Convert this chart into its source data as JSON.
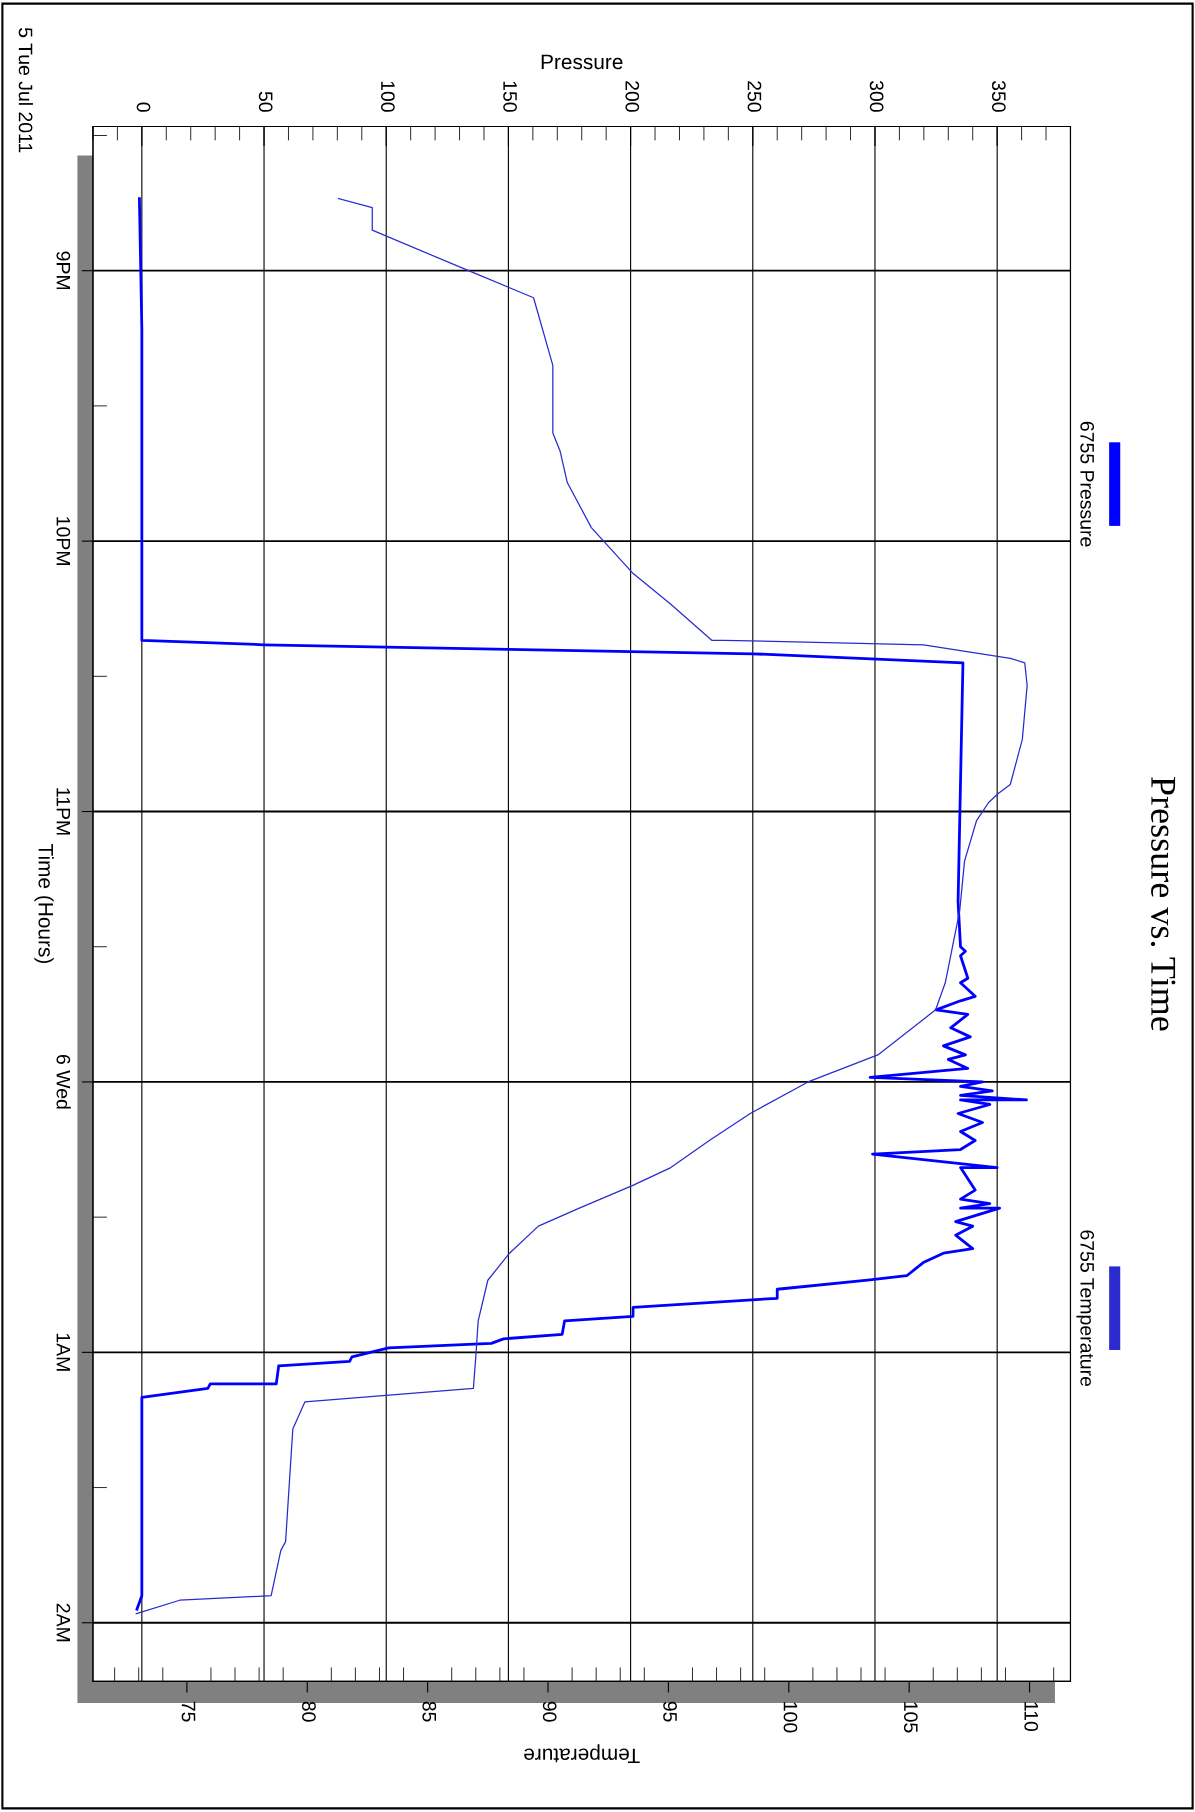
{
  "chart_data": {
    "type": "line",
    "orientation": "horizontal",
    "title": "Pressure vs. Time",
    "ylabel": "Time (Hours)",
    "x2label": "Pressure",
    "xlabel": "Temperature",
    "annotations": [
      "5 Tue Jul 2011"
    ],
    "ylim": [
      "2011-07-06T02:13",
      "2011-07-05T20:28"
    ],
    "yticks": [
      {
        "value": "2011-07-05T21:00",
        "label": "9PM"
      },
      {
        "value": "2011-07-05T22:00",
        "label": "10PM"
      },
      {
        "value": "2011-07-05T23:00",
        "label": "11PM"
      },
      {
        "value": "2011-07-06T00:00",
        "label": "6 Wed"
      },
      {
        "value": "2011-07-06T01:00",
        "label": "1AM"
      },
      {
        "value": "2011-07-06T02:00",
        "label": "2AM"
      }
    ],
    "x2lim": [
      -20,
      380
    ],
    "x2ticks": [
      0,
      50,
      100,
      150,
      200,
      250,
      300,
      350
    ],
    "xlim": [
      71.1,
      111.7
    ],
    "xticks": [
      75,
      80,
      85,
      90,
      95,
      100,
      105,
      110
    ],
    "grid": true,
    "legend": "right",
    "series": [
      {
        "name": "6755 Pressure",
        "color": "#0000ff",
        "line_style": "solid",
        "axis": "x2",
        "values": [
          -1,
          0,
          0,
          0,
          50,
          150,
          250,
          336,
          334,
          335,
          337,
          335,
          338,
          335,
          341,
          335,
          325,
          338,
          331,
          339,
          328,
          337,
          330,
          338,
          298,
          344,
          335,
          348,
          335,
          362,
          335,
          347,
          334,
          344,
          335,
          341,
          335,
          299,
          350,
          335,
          341,
          335,
          347,
          335,
          351,
          333,
          340,
          333,
          340,
          328,
          320,
          313,
          297,
          260,
          260,
          201,
          201,
          173,
          172,
          148,
          143,
          101,
          86,
          85,
          56,
          55,
          28,
          27,
          0,
          0,
          -2
        ],
        "x": [
          "2011-07-05T20:44",
          "2011-07-05T21:13",
          "2011-07-05T22:00",
          "2011-07-05T22:22",
          "2011-07-05T22:23",
          "2011-07-05T22:24",
          "2011-07-05T22:25",
          "2011-07-05T22:27",
          "2011-07-05T23:20",
          "2011-07-05T23:30",
          "2011-07-05T23:31",
          "2011-07-05T23:32",
          "2011-07-05T23:37",
          "2011-07-05T23:38",
          "2011-07-05T23:41",
          "2011-07-05T23:42",
          "2011-07-05T23:44",
          "2011-07-05T23:45",
          "2011-07-05T23:48",
          "2011-07-05T23:50",
          "2011-07-05T23:52",
          "2011-07-05T23:54",
          "2011-07-05T23:55",
          "2011-07-05T23:57",
          "2011-07-05T23:59",
          "2011-07-06T00:00",
          "2011-07-06T00:01",
          "2011-07-06T00:02",
          "2011-07-06T00:03",
          "2011-07-06T00:04",
          "2011-07-06T00:04",
          "2011-07-06T00:05",
          "2011-07-06T00:07",
          "2011-07-06T00:09",
          "2011-07-06T00:11",
          "2011-07-06T00:13",
          "2011-07-06T00:15",
          "2011-07-06T00:16",
          "2011-07-06T00:19",
          "2011-07-06T00:19",
          "2011-07-06T00:24",
          "2011-07-06T00:26",
          "2011-07-06T00:27",
          "2011-07-06T00:28",
          "2011-07-06T00:28",
          "2011-07-06T00:31",
          "2011-07-06T00:32",
          "2011-07-06T00:34",
          "2011-07-06T00:37",
          "2011-07-06T00:38",
          "2011-07-06T00:40",
          "2011-07-06T00:43",
          "2011-07-06T00:44",
          "2011-07-06T00:46",
          "2011-07-06T00:48",
          "2011-07-06T00:50",
          "2011-07-06T00:52",
          "2011-07-06T00:53",
          "2011-07-06T00:56",
          "2011-07-06T00:57",
          "2011-07-06T00:58",
          "2011-07-06T00:59",
          "2011-07-06T01:01",
          "2011-07-06T01:02",
          "2011-07-06T01:03",
          "2011-07-06T01:07",
          "2011-07-06T01:07",
          "2011-07-06T01:08",
          "2011-07-06T01:10",
          "2011-07-06T01:54",
          "2011-07-06T01:57"
        ]
      },
      {
        "name": "6755 Temperature",
        "color": "#2b2bd0",
        "line_style": "solid",
        "values": [
          81.3,
          82.7,
          82.7,
          86.7,
          89.4,
          90.2,
          90.2,
          90.5,
          90.8,
          91.8,
          93.5,
          95.1,
          96.8,
          97.3,
          105.6,
          109.2,
          109.8,
          109.9,
          109.7,
          109.2,
          108.7,
          108.3,
          107.8,
          107.3,
          107.1,
          106.8,
          106.5,
          106.1,
          103.7,
          100.8,
          98.4,
          96.7,
          95.1,
          93.5,
          91.3,
          89.6,
          88.4,
          87.5,
          87.1,
          87.0,
          86.9,
          79.9,
          79.4,
          79.1,
          78.9,
          78.5,
          74.7,
          72.9
        ],
        "x": [
          "2011-07-05T20:44",
          "2011-07-05T20:46",
          "2011-07-05T20:51",
          "2011-07-05T21:00",
          "2011-07-05T21:06",
          "2011-07-05T21:21",
          "2011-07-05T21:36",
          "2011-07-05T21:40",
          "2011-07-05T21:47",
          "2011-07-05T21:57",
          "2011-07-05T22:07",
          "2011-07-05T22:14",
          "2011-07-05T22:22",
          "2011-07-05T22:22",
          "2011-07-05T22:23",
          "2011-07-05T22:26",
          "2011-07-05T22:27",
          "2011-07-05T22:32",
          "2011-07-05T22:44",
          "2011-07-05T22:54",
          "2011-07-05T22:56",
          "2011-07-05T22:58",
          "2011-07-05T23:02",
          "2011-07-05T23:11",
          "2011-07-05T23:22",
          "2011-07-05T23:30",
          "2011-07-05T23:38",
          "2011-07-05T23:44",
          "2011-07-05T23:54",
          "2011-07-06T00:00",
          "2011-07-06T00:07",
          "2011-07-06T00:13",
          "2011-07-06T00:19",
          "2011-07-06T00:23",
          "2011-07-06T00:28",
          "2011-07-06T00:32",
          "2011-07-06T00:38",
          "2011-07-06T00:44",
          "2011-07-06T00:53",
          "2011-07-06T01:01",
          "2011-07-06T01:08",
          "2011-07-06T01:11",
          "2011-07-06T01:17",
          "2011-07-06T01:42",
          "2011-07-06T01:44",
          "2011-07-06T01:54",
          "2011-07-06T01:55",
          "2011-07-06T01:58"
        ]
      }
    ]
  }
}
